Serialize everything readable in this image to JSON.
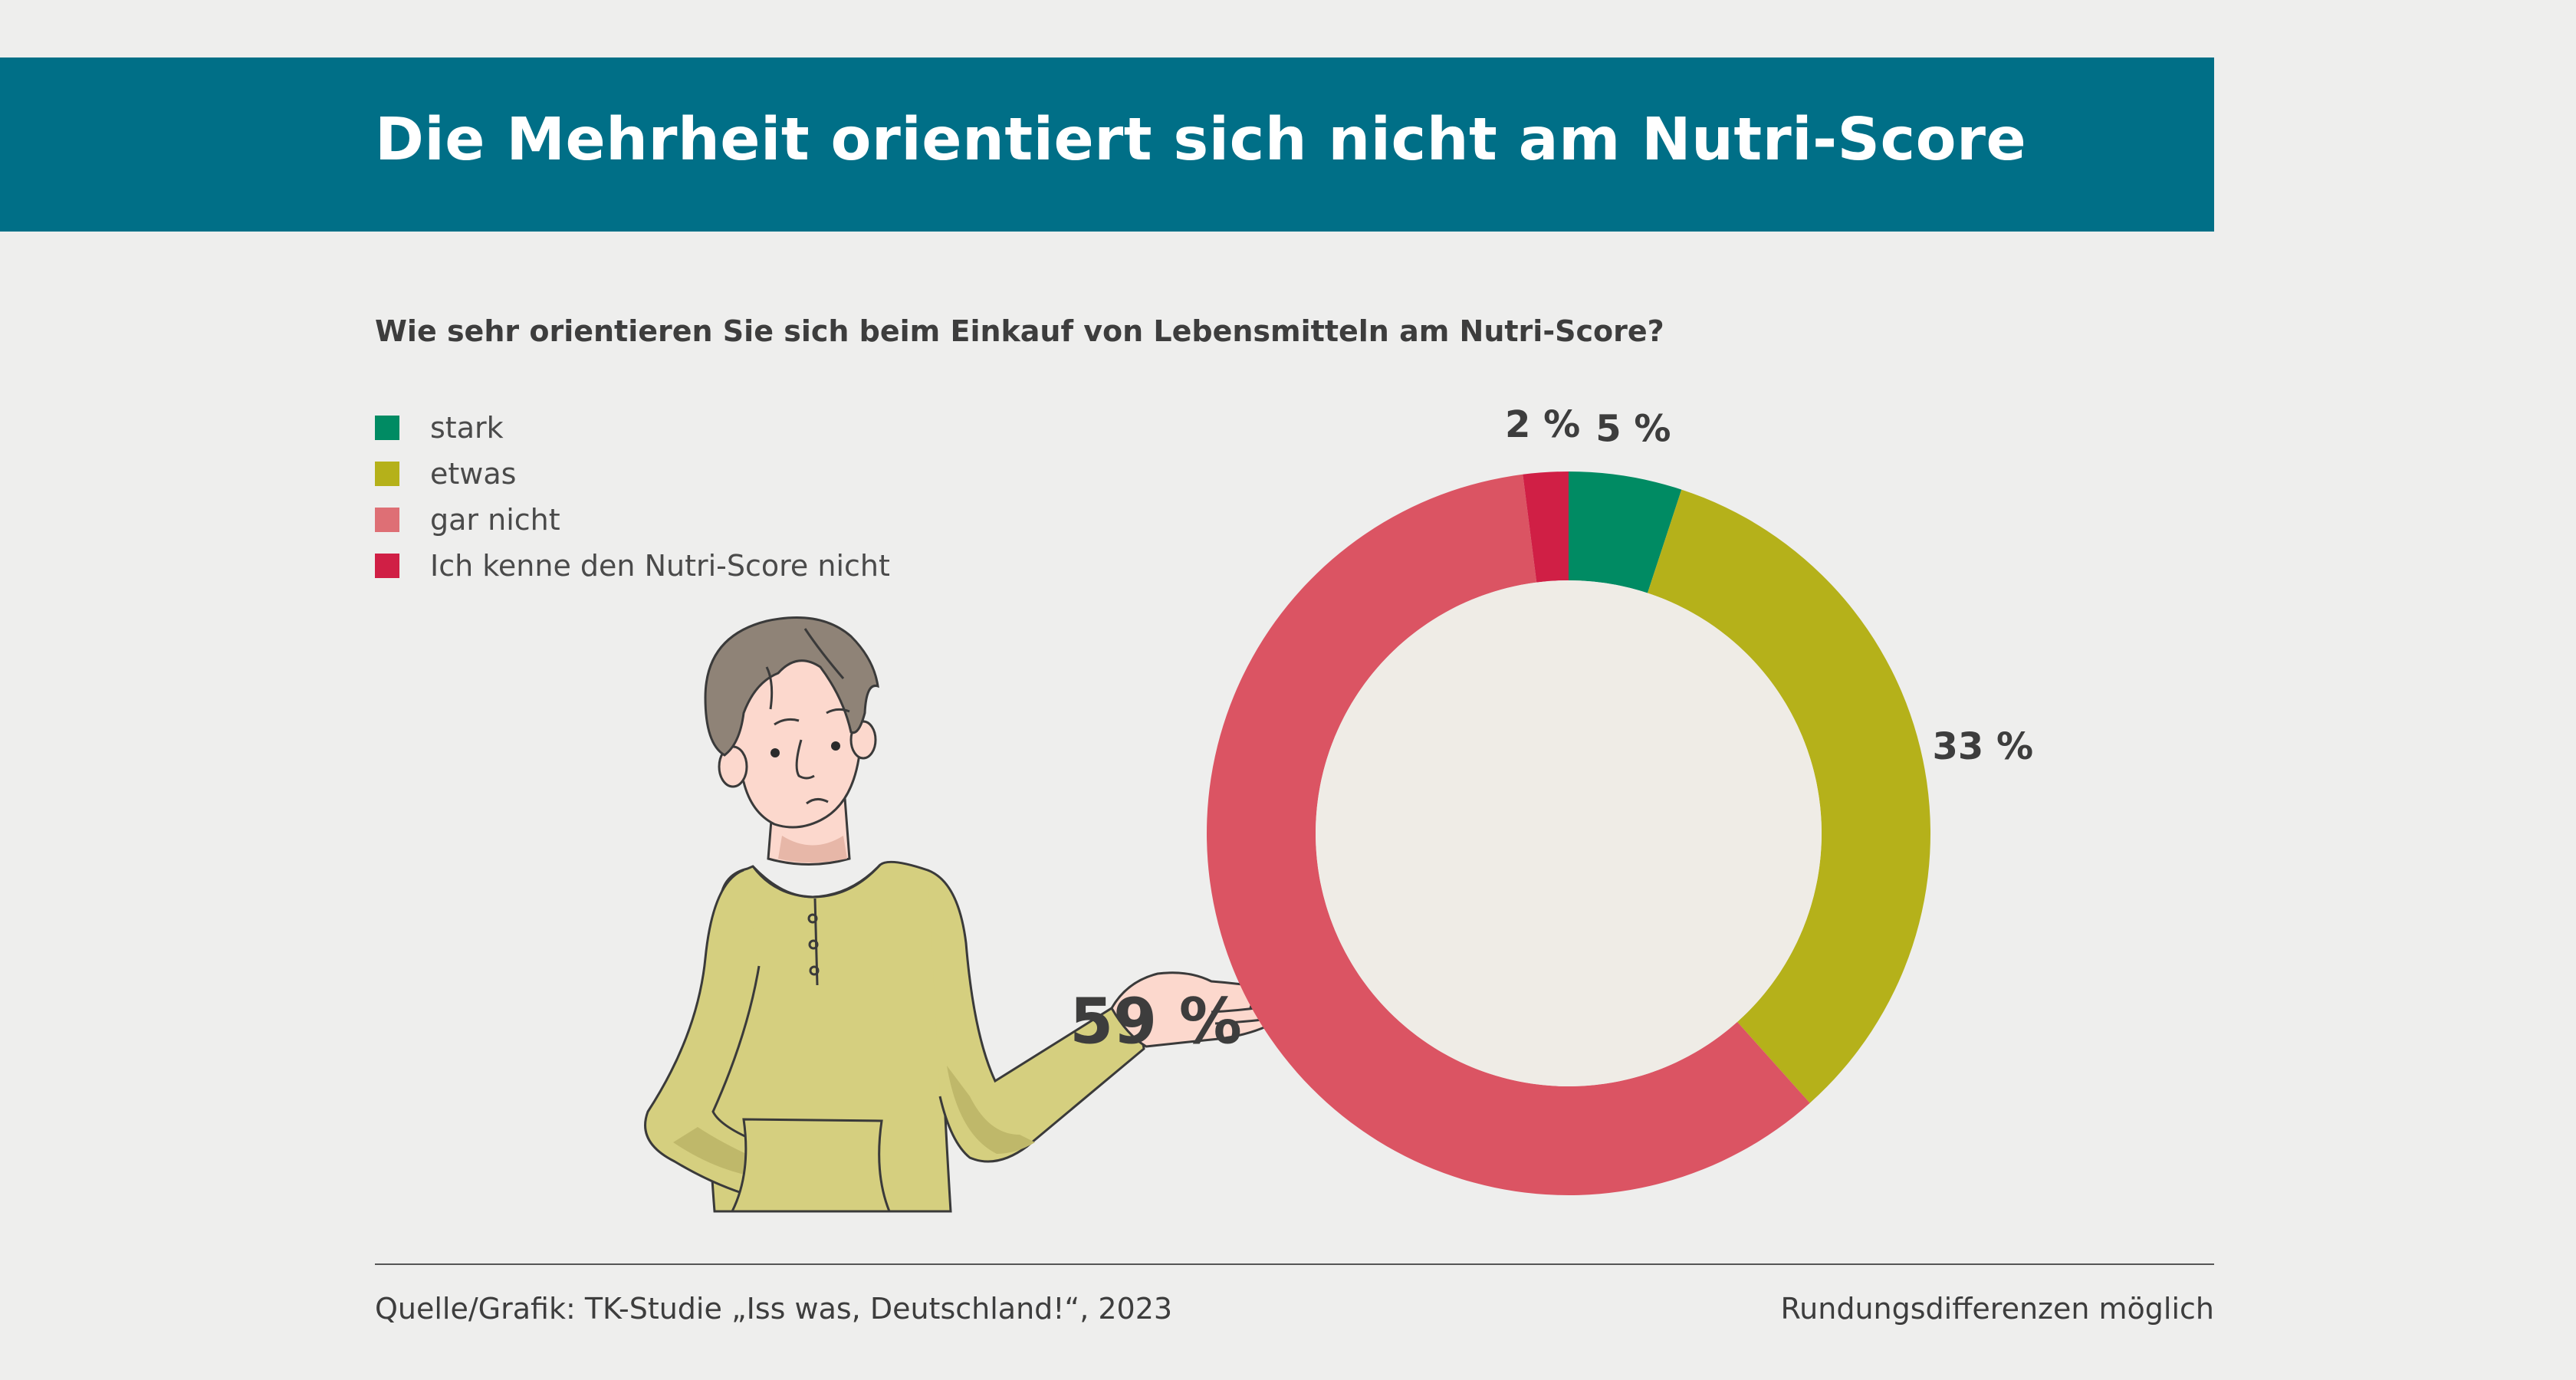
{
  "header": {
    "title": "Die Mehrheit orientiert sich nicht am Nutri-Score"
  },
  "question": "Wie sehr orientieren Sie sich beim Einkauf von Lebensmitteln am Nutri-Score?",
  "chart_data": {
    "type": "pie",
    "donut": true,
    "title": "Die Mehrheit orientiert sich nicht am Nutri-Score",
    "subtitle": "Wie sehr orientieren Sie sich beim Einkauf von Lebensmitteln am Nutri-Score?",
    "legend_position": "top-left",
    "unit": "%",
    "slices": [
      {
        "label": "stark",
        "value": 5,
        "display": "5 %",
        "color": "#008b63"
      },
      {
        "label": "etwas",
        "value": 33,
        "display": "33 %",
        "color": "#b5b11a"
      },
      {
        "label": "gar nicht",
        "value": 59,
        "display": "59 %",
        "color": "#db5463"
      },
      {
        "label": "Ich kenne den Nutri-Score nicht",
        "value": 2,
        "display": "2 %",
        "color": "#d01f45"
      }
    ],
    "center_color": "#efece6"
  },
  "legend": {
    "items": [
      {
        "label": "stark",
        "color": "#008b63"
      },
      {
        "label": "etwas",
        "color": "#b5b11a"
      },
      {
        "label": "gar nicht",
        "color": "#de6f75"
      },
      {
        "label": "Ich kenne den Nutri-Score nicht",
        "color": "#d01f45"
      }
    ]
  },
  "footer": {
    "source": "Quelle/Grafik: TK-Studie „Iss was, Deutschland!“, 2023",
    "note": "Rundungsdifferenzen möglich"
  }
}
